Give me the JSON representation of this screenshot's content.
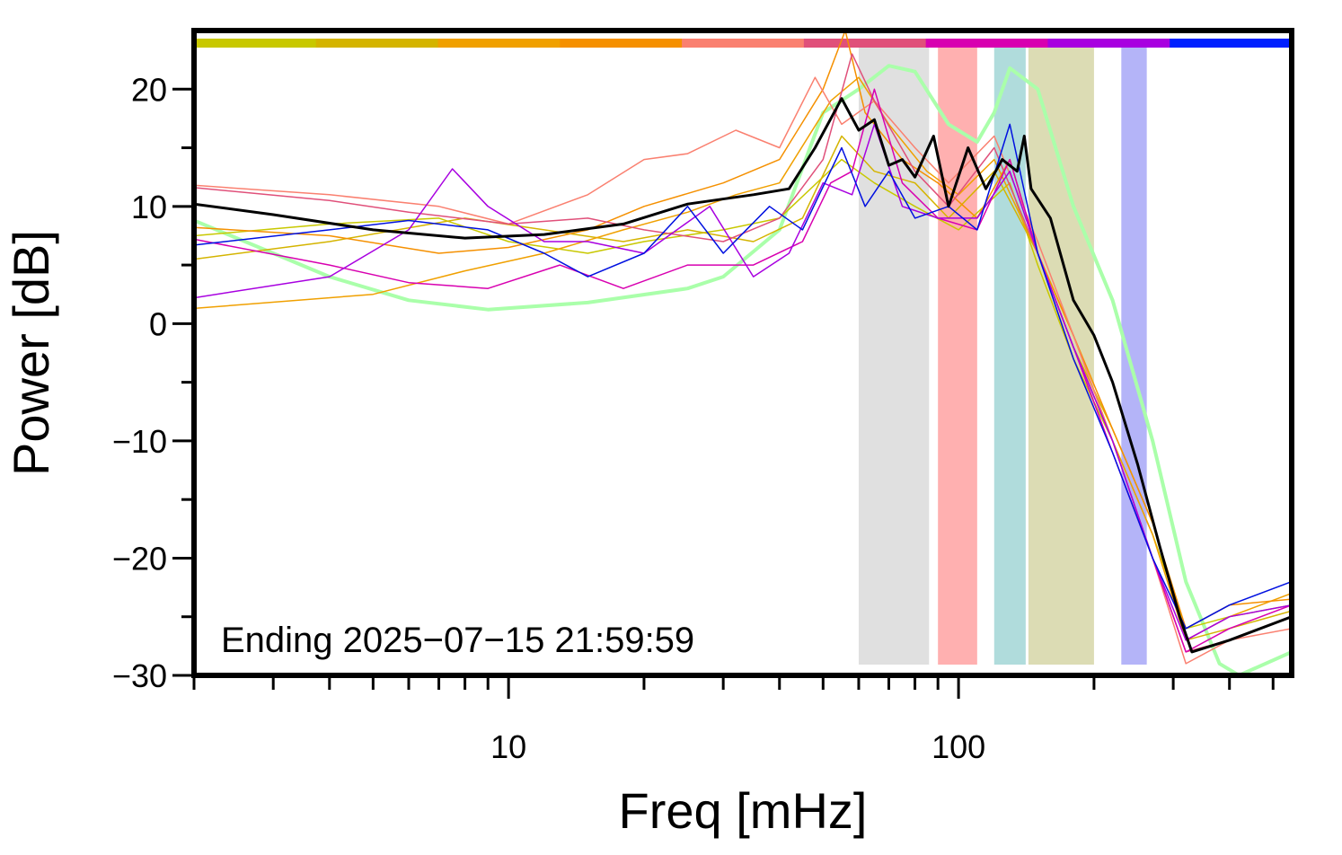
{
  "chart_data": {
    "type": "line",
    "xlabel": "Freq [mHz]",
    "ylabel": "Power [dB]",
    "x_scale": "log",
    "xlim": [
      2,
      550
    ],
    "ylim": [
      -30,
      25
    ],
    "x_tick_labels": [
      {
        "value": 10,
        "label": "10"
      },
      {
        "value": 100,
        "label": "100"
      }
    ],
    "y_tick_labels": [
      {
        "value": 20,
        "label": "20"
      },
      {
        "value": 10,
        "label": "10"
      },
      {
        "value": 0,
        "label": "0"
      },
      {
        "value": -10,
        "label": "−10"
      },
      {
        "value": -20,
        "label": "−20"
      },
      {
        "value": -30,
        "label": "−30"
      }
    ],
    "annotation": "Ending 2025−07−15 21:59:59",
    "color_strip": [
      "#c8c800",
      "#d4b400",
      "#f0a000",
      "#f59000",
      "#fa8070",
      "#e0507a",
      "#d800b0",
      "#a800e0",
      "#0020ff"
    ],
    "bands": [
      {
        "from": 60,
        "to": 86,
        "color": "#e0e0e0"
      },
      {
        "from": 90,
        "to": 110,
        "color": "#ffb0b0"
      },
      {
        "from": 120,
        "to": 141,
        "color": "#b0dcdc"
      },
      {
        "from": 143,
        "to": 200,
        "color": "#dcdcb4"
      },
      {
        "from": 230,
        "to": 262,
        "color": "#b4b4f8"
      }
    ],
    "series": [
      {
        "color": "#aaffaa",
        "width": 4,
        "points": [
          [
            2,
            8.8
          ],
          [
            3,
            6
          ],
          [
            4,
            4
          ],
          [
            6,
            2
          ],
          [
            9,
            1.2
          ],
          [
            15,
            1.8
          ],
          [
            25,
            3
          ],
          [
            30,
            4
          ],
          [
            40,
            8
          ],
          [
            50,
            18
          ],
          [
            60,
            20
          ],
          [
            70,
            22
          ],
          [
            80,
            21.5
          ],
          [
            95,
            17
          ],
          [
            110,
            15.5
          ],
          [
            120,
            18
          ],
          [
            130,
            21.8
          ],
          [
            150,
            20
          ],
          [
            180,
            10
          ],
          [
            220,
            2
          ],
          [
            270,
            -10
          ],
          [
            320,
            -22
          ],
          [
            380,
            -29
          ],
          [
            420,
            -30
          ],
          [
            550,
            -28
          ]
        ]
      },
      {
        "color": "#c8c800",
        "width": 1.5,
        "points": [
          [
            2,
            7.5
          ],
          [
            4,
            8.5
          ],
          [
            7,
            9
          ],
          [
            10,
            7
          ],
          [
            15,
            6
          ],
          [
            20,
            7
          ],
          [
            30,
            8
          ],
          [
            40,
            9
          ],
          [
            55,
            14
          ],
          [
            65,
            12
          ],
          [
            80,
            10
          ],
          [
            100,
            8
          ],
          [
            130,
            12
          ],
          [
            150,
            5
          ],
          [
            180,
            -3
          ],
          [
            220,
            -10
          ],
          [
            270,
            -18
          ],
          [
            320,
            -26
          ],
          [
            400,
            -25
          ],
          [
            550,
            -24
          ]
        ]
      },
      {
        "color": "#d4b400",
        "width": 1.5,
        "points": [
          [
            2,
            5.5
          ],
          [
            4,
            7
          ],
          [
            8,
            9
          ],
          [
            12,
            8
          ],
          [
            18,
            7
          ],
          [
            25,
            8
          ],
          [
            35,
            7
          ],
          [
            45,
            9
          ],
          [
            55,
            16
          ],
          [
            65,
            13
          ],
          [
            80,
            12
          ],
          [
            95,
            9
          ],
          [
            120,
            13
          ],
          [
            150,
            6
          ],
          [
            180,
            -2
          ],
          [
            220,
            -9
          ],
          [
            270,
            -17
          ],
          [
            320,
            -27
          ],
          [
            400,
            -26
          ],
          [
            550,
            -24.5
          ]
        ]
      },
      {
        "color": "#f0a000",
        "width": 1.5,
        "points": [
          [
            2,
            1.3
          ],
          [
            5,
            2.5
          ],
          [
            8,
            4.5
          ],
          [
            12,
            6
          ],
          [
            18,
            8
          ],
          [
            25,
            9.5
          ],
          [
            32,
            11
          ],
          [
            40,
            12
          ],
          [
            52,
            19
          ],
          [
            60,
            21
          ],
          [
            70,
            17
          ],
          [
            85,
            13
          ],
          [
            100,
            11
          ],
          [
            120,
            14
          ],
          [
            150,
            6
          ],
          [
            180,
            -1
          ],
          [
            220,
            -10
          ],
          [
            270,
            -18
          ],
          [
            320,
            -27
          ],
          [
            400,
            -25
          ],
          [
            550,
            -23
          ]
        ]
      },
      {
        "color": "#f59000",
        "width": 1.5,
        "points": [
          [
            2,
            8.2
          ],
          [
            4,
            7.5
          ],
          [
            7,
            6
          ],
          [
            10,
            6.5
          ],
          [
            15,
            8
          ],
          [
            20,
            10
          ],
          [
            30,
            12
          ],
          [
            40,
            14
          ],
          [
            50,
            20
          ],
          [
            56,
            25
          ],
          [
            62,
            18
          ],
          [
            75,
            14
          ],
          [
            90,
            12
          ],
          [
            110,
            9
          ],
          [
            130,
            14
          ],
          [
            150,
            6
          ],
          [
            180,
            -1
          ],
          [
            220,
            -9
          ],
          [
            270,
            -17
          ],
          [
            320,
            -26
          ],
          [
            400,
            -24
          ],
          [
            550,
            -23.5
          ]
        ]
      },
      {
        "color": "#fa8070",
        "width": 1.5,
        "points": [
          [
            2,
            11.8
          ],
          [
            4,
            11
          ],
          [
            7,
            10
          ],
          [
            10,
            8.5
          ],
          [
            15,
            11
          ],
          [
            20,
            14
          ],
          [
            25,
            14.5
          ],
          [
            32,
            16.5
          ],
          [
            40,
            15
          ],
          [
            48,
            21
          ],
          [
            55,
            17
          ],
          [
            65,
            19
          ],
          [
            80,
            15
          ],
          [
            95,
            12
          ],
          [
            120,
            16
          ],
          [
            150,
            7
          ],
          [
            180,
            -1
          ],
          [
            220,
            -10
          ],
          [
            270,
            -20
          ],
          [
            320,
            -29
          ],
          [
            400,
            -27
          ],
          [
            550,
            -26
          ]
        ]
      },
      {
        "color": "#e0507a",
        "width": 1.5,
        "points": [
          [
            2,
            11.6
          ],
          [
            4,
            10.5
          ],
          [
            6,
            9.5
          ],
          [
            10,
            8.5
          ],
          [
            15,
            9
          ],
          [
            20,
            8
          ],
          [
            30,
            7
          ],
          [
            40,
            9
          ],
          [
            50,
            14
          ],
          [
            58,
            23
          ],
          [
            65,
            19
          ],
          [
            80,
            13
          ],
          [
            95,
            10
          ],
          [
            120,
            15
          ],
          [
            150,
            6
          ],
          [
            180,
            -2
          ],
          [
            220,
            -10
          ],
          [
            270,
            -20
          ],
          [
            320,
            -28
          ],
          [
            400,
            -27
          ],
          [
            550,
            -25
          ]
        ]
      },
      {
        "color": "#d800b0",
        "width": 1.5,
        "points": [
          [
            2,
            7.2
          ],
          [
            4,
            5
          ],
          [
            6,
            3.5
          ],
          [
            9,
            3
          ],
          [
            13,
            5
          ],
          [
            18,
            3
          ],
          [
            25,
            5
          ],
          [
            35,
            5
          ],
          [
            45,
            7
          ],
          [
            52,
            12
          ],
          [
            58,
            13
          ],
          [
            65,
            20
          ],
          [
            75,
            12
          ],
          [
            90,
            9
          ],
          [
            110,
            8
          ],
          [
            130,
            14
          ],
          [
            150,
            6
          ],
          [
            180,
            -2
          ],
          [
            220,
            -11
          ],
          [
            270,
            -20
          ],
          [
            320,
            -28
          ],
          [
            400,
            -26
          ],
          [
            550,
            -24
          ]
        ]
      },
      {
        "color": "#a800e0",
        "width": 1.5,
        "points": [
          [
            2,
            2.2
          ],
          [
            4,
            4
          ],
          [
            6,
            8
          ],
          [
            7.5,
            13.2
          ],
          [
            9,
            10
          ],
          [
            12,
            7
          ],
          [
            15,
            7
          ],
          [
            20,
            6
          ],
          [
            28,
            10
          ],
          [
            35,
            4
          ],
          [
            42,
            6
          ],
          [
            50,
            12
          ],
          [
            58,
            11
          ],
          [
            65,
            17
          ],
          [
            75,
            10
          ],
          [
            90,
            9
          ],
          [
            110,
            9
          ],
          [
            130,
            13
          ],
          [
            150,
            6
          ],
          [
            180,
            -2
          ],
          [
            220,
            -10
          ],
          [
            270,
            -20
          ],
          [
            320,
            -27
          ],
          [
            400,
            -25
          ],
          [
            550,
            -24
          ]
        ]
      },
      {
        "color": "#0010e0",
        "width": 1.5,
        "points": [
          [
            2,
            6.7
          ],
          [
            4,
            8
          ],
          [
            6,
            8.8
          ],
          [
            9,
            8
          ],
          [
            12,
            6
          ],
          [
            15,
            4
          ],
          [
            20,
            6
          ],
          [
            25,
            10
          ],
          [
            30,
            6
          ],
          [
            38,
            10
          ],
          [
            45,
            8
          ],
          [
            55,
            15
          ],
          [
            62,
            10
          ],
          [
            70,
            13
          ],
          [
            80,
            9
          ],
          [
            95,
            10
          ],
          [
            110,
            8
          ],
          [
            130,
            17
          ],
          [
            150,
            6
          ],
          [
            180,
            -3
          ],
          [
            220,
            -11
          ],
          [
            270,
            -20
          ],
          [
            320,
            -26
          ],
          [
            400,
            -24
          ],
          [
            550,
            -22
          ]
        ]
      },
      {
        "color": "#000000",
        "width": 3,
        "points": [
          [
            2,
            10.2
          ],
          [
            3,
            9.3
          ],
          [
            5,
            8
          ],
          [
            8,
            7.3
          ],
          [
            12,
            7.6
          ],
          [
            18,
            8.5
          ],
          [
            25,
            10.2
          ],
          [
            35,
            11
          ],
          [
            42,
            11.5
          ],
          [
            48,
            15
          ],
          [
            55,
            19.2
          ],
          [
            60,
            16.5
          ],
          [
            65,
            17.4
          ],
          [
            70,
            13.5
          ],
          [
            75,
            14
          ],
          [
            80,
            12.5
          ],
          [
            88,
            16
          ],
          [
            95,
            10
          ],
          [
            105,
            15
          ],
          [
            115,
            11.5
          ],
          [
            125,
            14
          ],
          [
            135,
            13
          ],
          [
            140,
            16
          ],
          [
            145,
            11.5
          ],
          [
            160,
            9
          ],
          [
            180,
            2
          ],
          [
            200,
            -1
          ],
          [
            220,
            -5
          ],
          [
            250,
            -12
          ],
          [
            280,
            -19
          ],
          [
            310,
            -25
          ],
          [
            330,
            -28
          ],
          [
            400,
            -27
          ],
          [
            550,
            -25
          ]
        ]
      }
    ]
  }
}
